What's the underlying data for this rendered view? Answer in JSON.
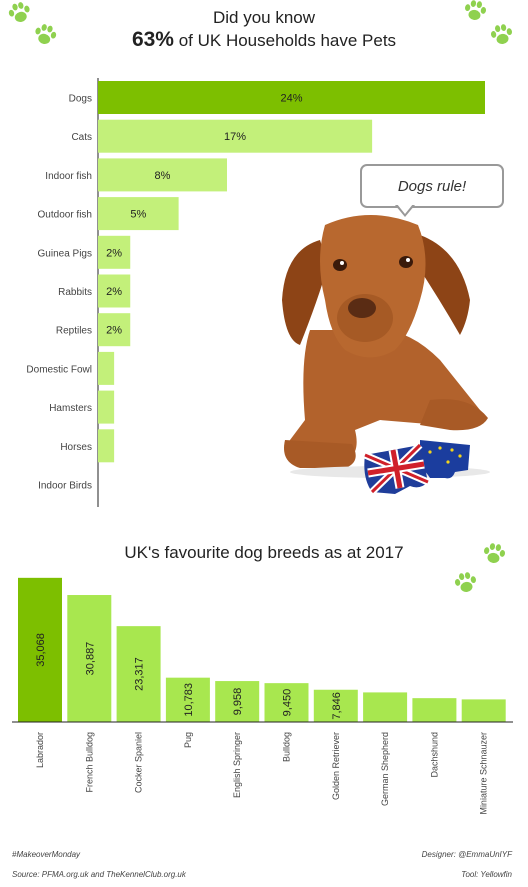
{
  "header": {
    "line1": "Did you know",
    "highlight": "63%",
    "line2_rest": "of UK Households have Pets"
  },
  "bubble": {
    "text": "Dogs rule!"
  },
  "colors": {
    "highlight": "#7dbf00",
    "light": "#c3f07a",
    "bright": "#a8e74f",
    "paw": "#8fd14f"
  },
  "chart_data": [
    {
      "type": "bar",
      "orientation": "horizontal",
      "categories": [
        "Dogs",
        "Cats",
        "Indoor fish",
        "Outdoor fish",
        "Guinea Pigs",
        "Rabbits",
        "Reptiles",
        "Domestic Fowl",
        "Hamsters",
        "Horses",
        "Indoor Birds"
      ],
      "values": [
        24,
        17,
        8,
        5,
        2,
        2,
        2,
        1,
        1,
        1,
        0
      ],
      "labels": [
        "24%",
        "17%",
        "8%",
        "5%",
        "2%",
        "2%",
        "2%",
        "",
        "",
        "",
        ""
      ],
      "unit": "%",
      "xlim": [
        0,
        24
      ]
    },
    {
      "type": "bar",
      "title": "UK's favourite dog breeds as at 2017",
      "categories": [
        "Labrador",
        "French Bulldog",
        "Cocker Spaniel",
        "Pug",
        "English Springer",
        "Bulldog",
        "Golden Retriever",
        "German Shepherd",
        "Dachshund",
        "Miniature Schnauzer"
      ],
      "values": [
        35068,
        30887,
        23317,
        10783,
        9958,
        9450,
        7846,
        7200,
        5800,
        5500
      ],
      "labels": [
        "35,068",
        "30,887",
        "23,317",
        "10,783",
        "9,958",
        "9,450",
        "7,846",
        "",
        "",
        ""
      ],
      "ylim": [
        0,
        36000
      ]
    }
  ],
  "footer": {
    "hashtag": "#MakeoverMonday",
    "source": "Source: PFMA.org.uk and TheKennelClub.org.uk",
    "designer": "Designer: @EmmaUnIYF",
    "tool": "Tool: Yellowfin"
  }
}
